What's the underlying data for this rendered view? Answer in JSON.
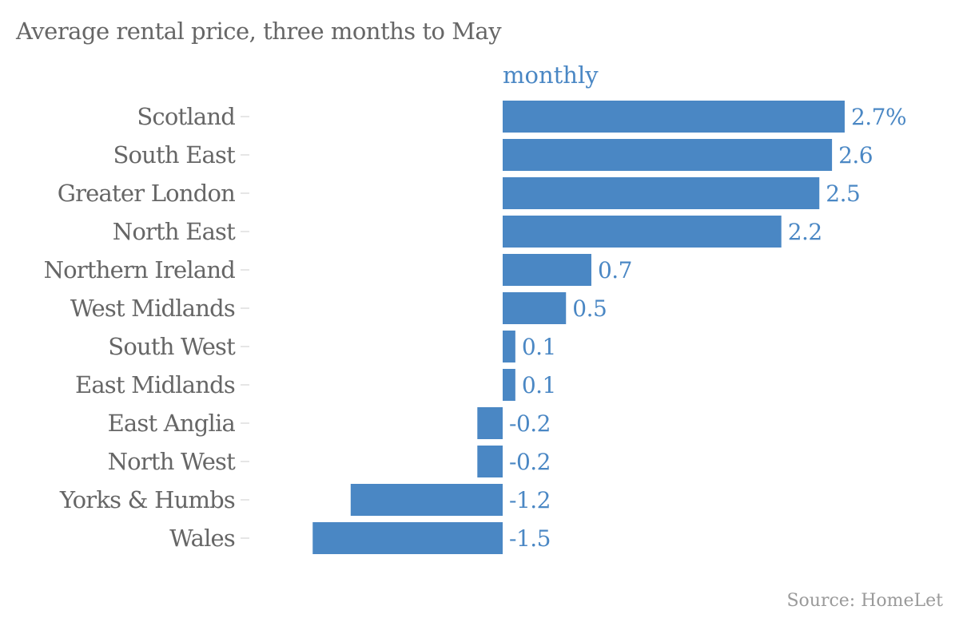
{
  "chart_data": {
    "type": "bar",
    "orientation": "horizontal",
    "title": "Average rental price, three months to May",
    "series_label": "monthly",
    "unit_suffix": "%",
    "categories": [
      "Scotland",
      "South East",
      "Greater London",
      "North East",
      "Northern Ireland",
      "West Midlands",
      "South West",
      "East Midlands",
      "East Anglia",
      "North West",
      "Yorks & Humbs",
      "Wales"
    ],
    "series": [
      {
        "name": "monthly",
        "values": [
          2.7,
          2.6,
          2.5,
          2.2,
          0.7,
          0.5,
          0.1,
          0.1,
          -0.2,
          -0.2,
          -1.2,
          -1.5
        ]
      }
    ],
    "value_labels": [
      "2.7%",
      "2.6",
      "2.5",
      "2.2",
      "0.7",
      "0.5",
      "0.1",
      "0.1",
      "-0.2",
      "-0.2",
      "-1.2",
      "-1.5"
    ],
    "xlim": [
      -1.5,
      2.7
    ],
    "grid": false,
    "legend": "none",
    "source": "Source: HomeLet",
    "colors": {
      "bar": "#4a87c4",
      "label": "#666666",
      "tick": "#dddddd",
      "source": "#9a9a9a"
    }
  }
}
